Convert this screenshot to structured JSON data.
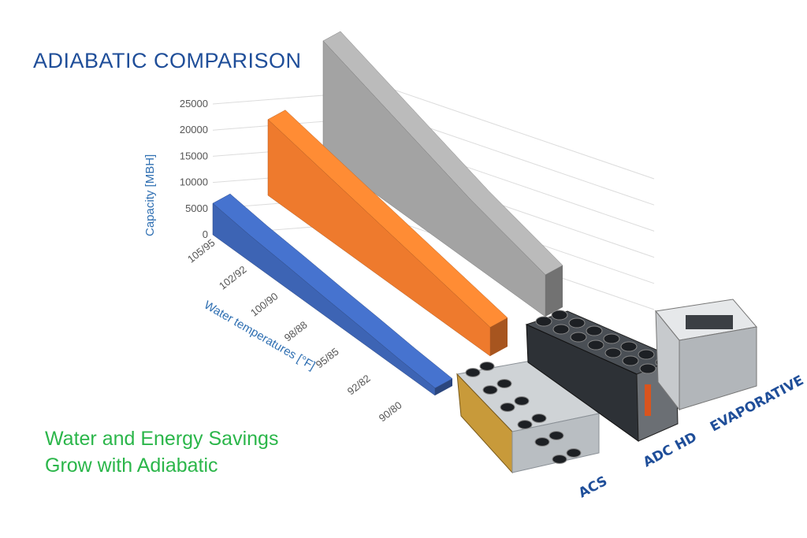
{
  "title": "ADIABATIC COMPARISON",
  "tagline": [
    "Water and Energy Savings",
    "Grow with Adiabatic"
  ],
  "products": [
    {
      "label": "ACS",
      "icon": "acs-unit-icon"
    },
    {
      "label": "ADC HD",
      "icon": "adc-hd-unit-icon"
    },
    {
      "label": "EVAPORATIVE",
      "icon": "evaporative-tower-icon"
    }
  ],
  "chart_data": {
    "type": "bar",
    "style": "3d-ribbon",
    "title": "ADIABATIC COMPARISON",
    "xlabel": "Water temperatures [°F]",
    "ylabel": "Capacity [MBH]",
    "ylim": [
      0,
      25000
    ],
    "yticks": [
      0,
      5000,
      10000,
      15000,
      20000,
      25000
    ],
    "categories": [
      "105/95",
      "102/92",
      "100/90",
      "98/88",
      "95/85",
      "92/82",
      "90/80"
    ],
    "grid": true,
    "series": [
      {
        "name": "ACS",
        "color": "#3d64b4",
        "values": [
          6000,
          5000,
          4300,
          3500,
          2800,
          2000,
          1400
        ]
      },
      {
        "name": "ADC HD",
        "color": "#ee7a2d",
        "values": [
          14500,
          13000,
          11500,
          10000,
          8500,
          7000,
          5500
        ]
      },
      {
        "name": "EVAPORATIVE",
        "color": "#a3a3a3",
        "values": [
          22000,
          19500,
          17000,
          14500,
          12000,
          10000,
          8000
        ]
      }
    ]
  }
}
